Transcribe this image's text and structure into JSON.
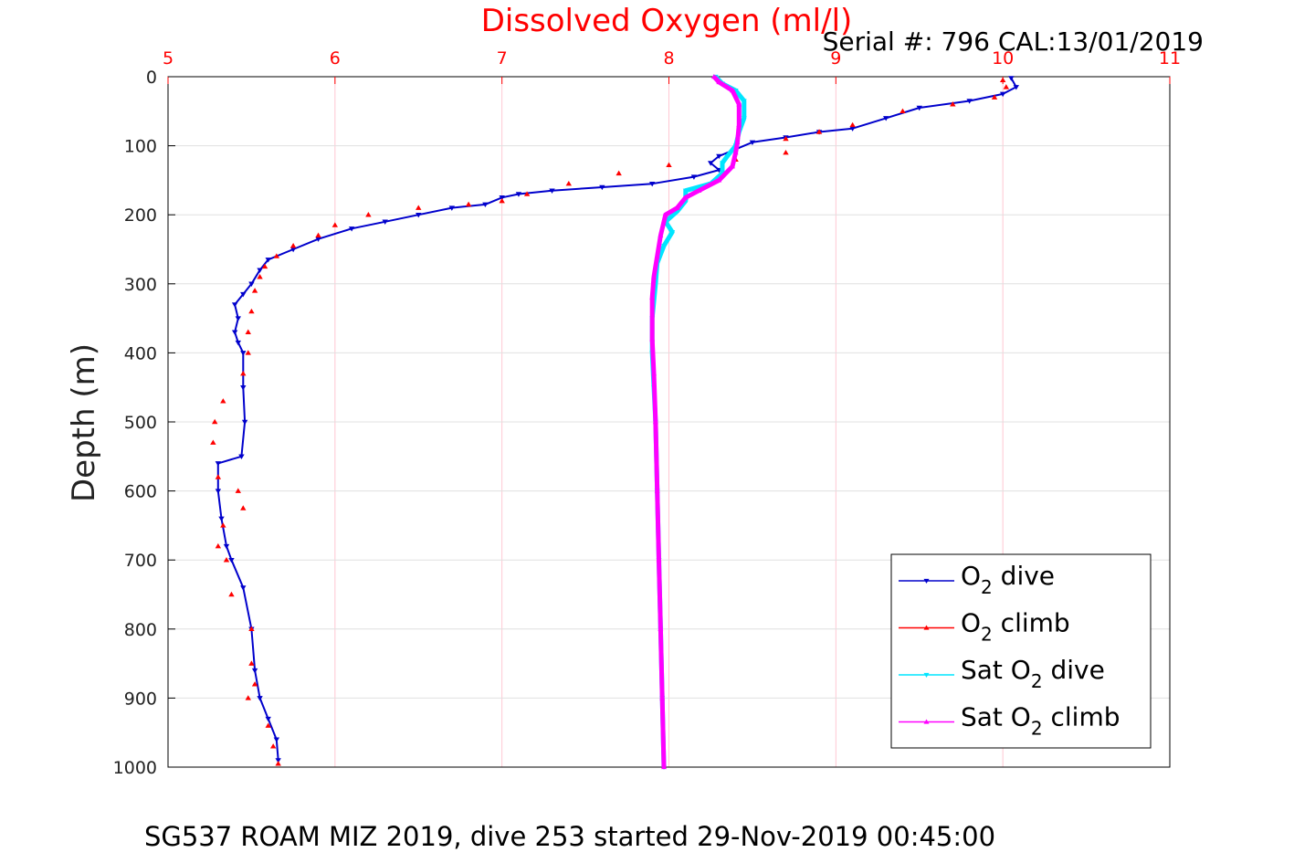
{
  "chart_data": {
    "type": "scatter",
    "title": "Dissolved Oxygen (ml/l)",
    "serial_text": "Serial #: 796  CAL:13/01/2019",
    "ylabel": "Depth (m)",
    "xlabel": "",
    "footer": "SG537 ROAM MIZ 2019, dive 253 started 29-Nov-2019 00:45:00",
    "xlim": [
      5,
      11
    ],
    "ylim": [
      0,
      1000
    ],
    "y_reversed": true,
    "x_axis_position": "top",
    "xticks": [
      5,
      6,
      7,
      8,
      9,
      10,
      11
    ],
    "yticks": [
      0,
      100,
      200,
      300,
      400,
      500,
      600,
      700,
      800,
      900,
      1000
    ],
    "xtick_color": "#ff0000",
    "grid": true,
    "legend_position": "bottom-right",
    "legend": [
      {
        "prefix": "O",
        "sub": "2",
        "suffix": " dive"
      },
      {
        "prefix": "O",
        "sub": "2",
        "suffix": " climb"
      },
      {
        "prefix": "Sat O",
        "sub": "2",
        "suffix": " dive"
      },
      {
        "prefix": "Sat O",
        "sub": "2",
        "suffix": " climb"
      }
    ],
    "series": [
      {
        "color": "#0000cc",
        "marker": "triangle-down",
        "points": [
          [
            10.05,
            2
          ],
          [
            10.08,
            15
          ],
          [
            10.0,
            25
          ],
          [
            9.8,
            35
          ],
          [
            9.5,
            45
          ],
          [
            9.3,
            60
          ],
          [
            9.1,
            75
          ],
          [
            8.9,
            80
          ],
          [
            8.7,
            88
          ],
          [
            8.5,
            95
          ],
          [
            8.4,
            105
          ],
          [
            8.3,
            115
          ],
          [
            8.25,
            125
          ],
          [
            8.3,
            135
          ],
          [
            8.15,
            145
          ],
          [
            7.9,
            155
          ],
          [
            7.6,
            160
          ],
          [
            7.3,
            165
          ],
          [
            7.1,
            170
          ],
          [
            7.0,
            175
          ],
          [
            6.9,
            185
          ],
          [
            6.7,
            190
          ],
          [
            6.5,
            200
          ],
          [
            6.3,
            210
          ],
          [
            6.1,
            220
          ],
          [
            5.9,
            235
          ],
          [
            5.75,
            250
          ],
          [
            5.6,
            265
          ],
          [
            5.55,
            280
          ],
          [
            5.5,
            300
          ],
          [
            5.45,
            315
          ],
          [
            5.4,
            330
          ],
          [
            5.42,
            350
          ],
          [
            5.4,
            370
          ],
          [
            5.42,
            385
          ],
          [
            5.45,
            400
          ],
          [
            5.45,
            450
          ],
          [
            5.46,
            500
          ],
          [
            5.44,
            550
          ],
          [
            5.3,
            560
          ],
          [
            5.3,
            600
          ],
          [
            5.32,
            640
          ],
          [
            5.35,
            680
          ],
          [
            5.38,
            700
          ],
          [
            5.45,
            740
          ],
          [
            5.5,
            800
          ],
          [
            5.52,
            860
          ],
          [
            5.55,
            900
          ],
          [
            5.6,
            930
          ],
          [
            5.65,
            960
          ],
          [
            5.66,
            990
          ]
        ]
      },
      {
        "color": "#ff0000",
        "marker": "triangle-up",
        "points": [
          [
            10.0,
            5
          ],
          [
            10.02,
            15
          ],
          [
            9.95,
            30
          ],
          [
            9.7,
            40
          ],
          [
            9.4,
            50
          ],
          [
            9.1,
            70
          ],
          [
            8.9,
            80
          ],
          [
            8.7,
            90
          ],
          [
            8.7,
            110
          ],
          [
            8.4,
            120
          ],
          [
            8.0,
            128
          ],
          [
            7.7,
            140
          ],
          [
            7.4,
            155
          ],
          [
            7.15,
            170
          ],
          [
            7.0,
            180
          ],
          [
            6.8,
            185
          ],
          [
            6.5,
            190
          ],
          [
            6.2,
            200
          ],
          [
            6.0,
            215
          ],
          [
            5.9,
            230
          ],
          [
            5.75,
            245
          ],
          [
            5.65,
            260
          ],
          [
            5.58,
            275
          ],
          [
            5.55,
            290
          ],
          [
            5.52,
            310
          ],
          [
            5.5,
            340
          ],
          [
            5.48,
            370
          ],
          [
            5.48,
            400
          ],
          [
            5.45,
            430
          ],
          [
            5.33,
            470
          ],
          [
            5.28,
            500
          ],
          [
            5.27,
            530
          ],
          [
            5.3,
            580
          ],
          [
            5.42,
            600
          ],
          [
            5.45,
            625
          ],
          [
            5.33,
            650
          ],
          [
            5.3,
            680
          ],
          [
            5.35,
            700
          ],
          [
            5.38,
            750
          ],
          [
            5.5,
            800
          ],
          [
            5.5,
            850
          ],
          [
            5.52,
            880
          ],
          [
            5.48,
            900
          ],
          [
            5.6,
            940
          ],
          [
            5.63,
            970
          ],
          [
            5.66,
            995
          ]
        ]
      },
      {
        "color": "#00e5ff",
        "marker": "triangle-down",
        "points": [
          [
            8.28,
            0
          ],
          [
            8.32,
            10
          ],
          [
            8.4,
            20
          ],
          [
            8.45,
            35
          ],
          [
            8.45,
            60
          ],
          [
            8.42,
            80
          ],
          [
            8.4,
            100
          ],
          [
            8.35,
            115
          ],
          [
            8.32,
            125
          ],
          [
            8.32,
            140
          ],
          [
            8.25,
            155
          ],
          [
            8.1,
            165
          ],
          [
            8.1,
            180
          ],
          [
            8.05,
            195
          ],
          [
            7.98,
            210
          ],
          [
            8.02,
            225
          ],
          [
            7.97,
            245
          ],
          [
            7.93,
            270
          ],
          [
            7.92,
            300
          ],
          [
            7.9,
            350
          ],
          [
            7.9,
            400
          ],
          [
            7.91,
            450
          ],
          [
            7.92,
            500
          ],
          [
            7.93,
            600
          ],
          [
            7.94,
            700
          ],
          [
            7.95,
            800
          ],
          [
            7.96,
            900
          ],
          [
            7.97,
            1000
          ]
        ]
      },
      {
        "color": "#ff00ff",
        "marker": "triangle-up",
        "points": [
          [
            8.27,
            0
          ],
          [
            8.3,
            8
          ],
          [
            8.38,
            20
          ],
          [
            8.42,
            40
          ],
          [
            8.42,
            70
          ],
          [
            8.41,
            95
          ],
          [
            8.4,
            110
          ],
          [
            8.38,
            130
          ],
          [
            8.3,
            150
          ],
          [
            8.18,
            165
          ],
          [
            8.1,
            175
          ],
          [
            8.05,
            190
          ],
          [
            7.98,
            200
          ],
          [
            7.95,
            230
          ],
          [
            7.93,
            260
          ],
          [
            7.91,
            290
          ],
          [
            7.9,
            320
          ],
          [
            7.9,
            380
          ],
          [
            7.91,
            430
          ],
          [
            7.92,
            500
          ],
          [
            7.93,
            600
          ],
          [
            7.94,
            700
          ],
          [
            7.95,
            800
          ],
          [
            7.96,
            900
          ],
          [
            7.97,
            1000
          ]
        ]
      }
    ]
  }
}
